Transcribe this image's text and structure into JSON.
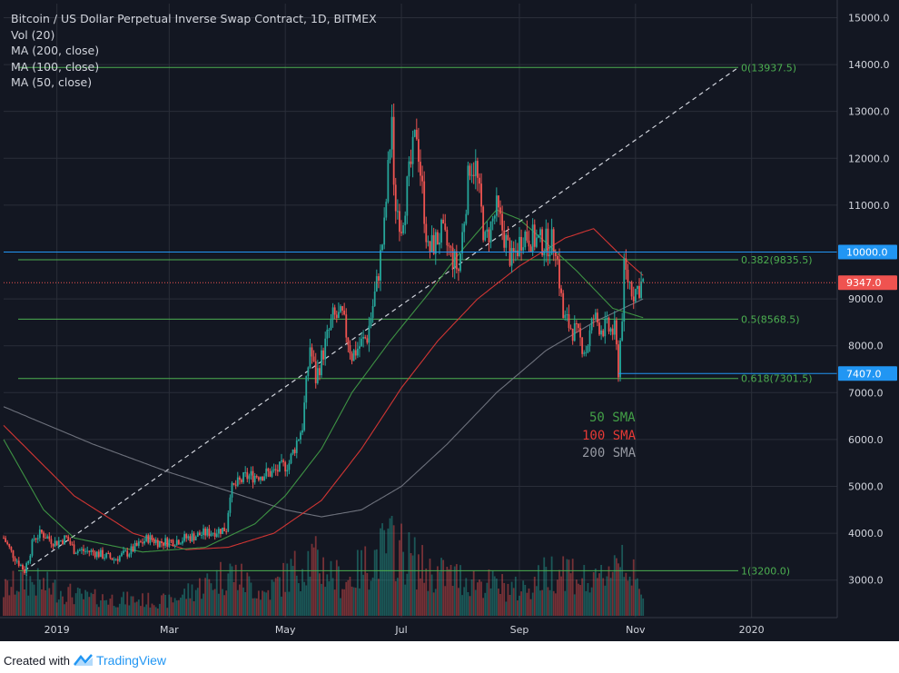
{
  "legend": {
    "title": "Bitcoin / US Dollar Perpetual Inverse Swap Contract, 1D, BITMEX",
    "vol": "Vol (20)",
    "ma200": "MA (200, close)",
    "ma100": "MA (100, close)",
    "ma50": "MA (50, close)"
  },
  "annotations": {
    "sma50": "50 SMA",
    "sma100": "100 SMA",
    "sma200": "200 SMA"
  },
  "footer": {
    "created_with": "Created with",
    "brand": "TradingView"
  },
  "colors": {
    "background": "#131722",
    "grid": "#2a2e39",
    "up": "#26a69a",
    "down": "#ef5350",
    "sma50": "#43a047",
    "sma100": "#e53935",
    "sma200": "#787b86",
    "fib": "#4caf50",
    "hline": "#2196f3",
    "axis_text": "#d1d4dc"
  },
  "chart_data": {
    "type": "candlestick",
    "symbol": "BTCUSD",
    "timeframe": "1D",
    "exchange": "BITMEX",
    "ylim": [
      2200,
      15300
    ],
    "y_axis_ticks": [
      "3000.0",
      "4000.0",
      "5000.0",
      "6000.0",
      "7000.0",
      "8000.0",
      "9000.0",
      "10000.0",
      "11000.0",
      "12000.0",
      "13000.0",
      "14000.0",
      "15000.0"
    ],
    "x_axis_ticks": [
      {
        "label": "2019",
        "date": "2019-01-01"
      },
      {
        "label": "Mar",
        "date": "2019-03-01"
      },
      {
        "label": "May",
        "date": "2019-05-01"
      },
      {
        "label": "Jul",
        "date": "2019-07-01"
      },
      {
        "label": "Sep",
        "date": "2019-09-01"
      },
      {
        "label": "Nov",
        "date": "2019-11-01"
      },
      {
        "label": "2020",
        "date": "2020-01-01"
      }
    ],
    "x_range": [
      "2018-12-04",
      "2020-02-15"
    ],
    "close_path": [
      [
        "2018-12-04",
        3900
      ],
      [
        "2018-12-08",
        3600
      ],
      [
        "2018-12-15",
        3200
      ],
      [
        "2018-12-20",
        3900
      ],
      [
        "2018-12-24",
        4000
      ],
      [
        "2018-12-31",
        3800
      ],
      [
        "2019-01-06",
        3900
      ],
      [
        "2019-01-10",
        3650
      ],
      [
        "2019-01-20",
        3600
      ],
      [
        "2019-01-31",
        3450
      ],
      [
        "2019-02-08",
        3600
      ],
      [
        "2019-02-18",
        3900
      ],
      [
        "2019-02-24",
        3800
      ],
      [
        "2019-03-05",
        3850
      ],
      [
        "2019-03-20",
        4000
      ],
      [
        "2019-03-31",
        4100
      ],
      [
        "2019-04-02",
        4900
      ],
      [
        "2019-04-10",
        5200
      ],
      [
        "2019-04-25",
        5300
      ],
      [
        "2019-05-03",
        5500
      ],
      [
        "2019-05-10",
        6300
      ],
      [
        "2019-05-14",
        8000
      ],
      [
        "2019-05-17",
        7300
      ],
      [
        "2019-05-26",
        8600
      ],
      [
        "2019-05-31",
        8600
      ],
      [
        "2019-06-05",
        7800
      ],
      [
        "2019-06-13",
        8200
      ],
      [
        "2019-06-18",
        9300
      ],
      [
        "2019-06-22",
        10500
      ],
      [
        "2019-06-26",
        12900
      ],
      [
        "2019-06-27",
        11200
      ],
      [
        "2019-07-01",
        10600
      ],
      [
        "2019-07-09",
        12600
      ],
      [
        "2019-07-15",
        10000
      ],
      [
        "2019-07-22",
        10400
      ],
      [
        "2019-07-31",
        9600
      ],
      [
        "2019-08-06",
        11900
      ],
      [
        "2019-08-09",
        11800
      ],
      [
        "2019-08-14",
        10200
      ],
      [
        "2019-08-20",
        10900
      ],
      [
        "2019-08-28",
        9800
      ],
      [
        "2019-09-03",
        10400
      ],
      [
        "2019-09-12",
        10200
      ],
      [
        "2019-09-20",
        10200
      ],
      [
        "2019-09-24",
        8600
      ],
      [
        "2019-09-30",
        8300
      ],
      [
        "2019-10-06",
        7900
      ],
      [
        "2019-10-10",
        8600
      ],
      [
        "2019-10-14",
        8400
      ],
      [
        "2019-10-21",
        8300
      ],
      [
        "2019-10-23",
        7500
      ],
      [
        "2019-10-25",
        8700
      ],
      [
        "2019-10-26",
        9600
      ],
      [
        "2019-10-31",
        9150
      ],
      [
        "2019-11-05",
        9347
      ]
    ],
    "volume_path": [
      [
        "2018-12-04",
        0.35
      ],
      [
        "2018-12-15",
        0.5
      ],
      [
        "2019-01-15",
        0.25
      ],
      [
        "2019-03-01",
        0.2
      ],
      [
        "2019-04-02",
        0.6
      ],
      [
        "2019-04-20",
        0.3
      ],
      [
        "2019-05-14",
        0.8
      ],
      [
        "2019-06-01",
        0.45
      ],
      [
        "2019-06-26",
        1.0
      ],
      [
        "2019-07-15",
        0.6
      ],
      [
        "2019-08-06",
        0.5
      ],
      [
        "2019-09-01",
        0.35
      ],
      [
        "2019-09-24",
        0.7
      ],
      [
        "2019-10-10",
        0.4
      ],
      [
        "2019-10-25",
        0.9
      ],
      [
        "2019-11-05",
        0.2
      ]
    ],
    "sma50_path": [
      [
        "2018-12-04",
        6000
      ],
      [
        "2018-12-25",
        4500
      ],
      [
        "2019-01-10",
        3900
      ],
      [
        "2019-02-15",
        3600
      ],
      [
        "2019-03-20",
        3700
      ],
      [
        "2019-04-15",
        4200
      ],
      [
        "2019-05-01",
        4800
      ],
      [
        "2019-05-20",
        5800
      ],
      [
        "2019-06-05",
        7000
      ],
      [
        "2019-06-25",
        8100
      ],
      [
        "2019-07-15",
        9100
      ],
      [
        "2019-08-01",
        10000
      ],
      [
        "2019-08-20",
        10900
      ],
      [
        "2019-09-01",
        10700
      ],
      [
        "2019-09-15",
        10200
      ],
      [
        "2019-10-01",
        9600
      ],
      [
        "2019-10-20",
        8800
      ],
      [
        "2019-11-05",
        8600
      ]
    ],
    "sma100_path": [
      [
        "2018-12-04",
        6300
      ],
      [
        "2019-01-10",
        4800
      ],
      [
        "2019-02-10",
        4000
      ],
      [
        "2019-03-10",
        3650
      ],
      [
        "2019-04-01",
        3700
      ],
      [
        "2019-04-25",
        4000
      ],
      [
        "2019-05-20",
        4700
      ],
      [
        "2019-06-10",
        5800
      ],
      [
        "2019-07-01",
        7100
      ],
      [
        "2019-07-20",
        8100
      ],
      [
        "2019-08-10",
        9000
      ],
      [
        "2019-09-01",
        9700
      ],
      [
        "2019-09-25",
        10300
      ],
      [
        "2019-10-10",
        10500
      ],
      [
        "2019-10-25",
        9900
      ],
      [
        "2019-11-05",
        9500
      ]
    ],
    "sma200_path": [
      [
        "2018-12-04",
        6700
      ],
      [
        "2019-01-20",
        5900
      ],
      [
        "2019-03-01",
        5300
      ],
      [
        "2019-04-01",
        4900
      ],
      [
        "2019-05-01",
        4500
      ],
      [
        "2019-05-20",
        4350
      ],
      [
        "2019-06-10",
        4500
      ],
      [
        "2019-07-01",
        5000
      ],
      [
        "2019-07-25",
        5900
      ],
      [
        "2019-08-20",
        7000
      ],
      [
        "2019-09-15",
        7900
      ],
      [
        "2019-10-10",
        8500
      ],
      [
        "2019-11-05",
        9000
      ]
    ],
    "fib_levels": [
      {
        "label": "0(13937.5)",
        "value": 13937.5
      },
      {
        "label": "0.382(9835.5)",
        "value": 9835.5
      },
      {
        "label": "0.5(8568.5)",
        "value": 8568.5
      },
      {
        "label": "0.618(7301.5)",
        "value": 7301.5
      },
      {
        "label": "1(3200.0)",
        "value": 3200.0
      }
    ],
    "fib_range": {
      "start": "2018-12-15",
      "end": "2019-12-25"
    },
    "trend_line": {
      "start": [
        "2018-12-15",
        3200
      ],
      "end": [
        "2019-12-25",
        13937.5
      ]
    },
    "horizontal_levels": [
      {
        "label": "10000.0",
        "value": 10000.0,
        "color": "#2196f3"
      },
      {
        "label": "7407.0",
        "value": 7407.0,
        "color": "#2196f3"
      }
    ],
    "last_price": {
      "label": "9347.0",
      "value": 9347.0,
      "color": "#ef5350"
    },
    "series": [
      {
        "name": "MA (50, close)"
      },
      {
        "name": "MA (100, close)"
      },
      {
        "name": "MA (200, close)"
      }
    ],
    "grid": true
  }
}
